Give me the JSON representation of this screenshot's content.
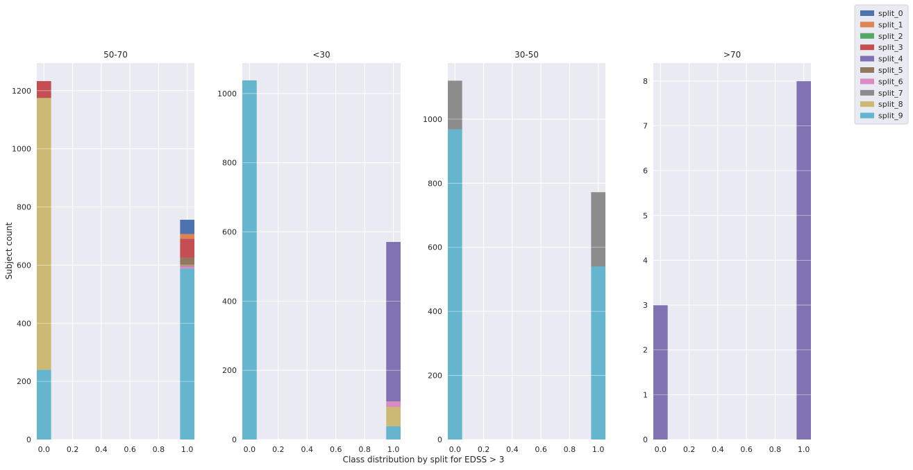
{
  "chart_data": {
    "type": "bar",
    "stacked": true,
    "figure": {
      "suptitle": "Class distribution by split for EDSS > 3",
      "ylabel": "Subject count"
    },
    "legend": {
      "placement": "top-right",
      "entries": [
        {
          "name": "split_0",
          "color": "#4c72b0"
        },
        {
          "name": "split_1",
          "color": "#dd8452"
        },
        {
          "name": "split_2",
          "color": "#55a868"
        },
        {
          "name": "split_3",
          "color": "#c44e52"
        },
        {
          "name": "split_4",
          "color": "#8172b3"
        },
        {
          "name": "split_5",
          "color": "#937860"
        },
        {
          "name": "split_6",
          "color": "#da8bc3"
        },
        {
          "name": "split_7",
          "color": "#8c8c8c"
        },
        {
          "name": "split_8",
          "color": "#ccb974"
        },
        {
          "name": "split_9",
          "color": "#64b5cd"
        }
      ]
    },
    "panels": [
      {
        "title": "50-70",
        "xlim": [
          -0.05,
          1.05
        ],
        "ylim": [
          0,
          1295
        ],
        "xticks": [
          0.0,
          0.2,
          0.4,
          0.6,
          0.8,
          1.0
        ],
        "xtick_labels": [
          "0.0",
          "0.2",
          "0.4",
          "0.6",
          "0.8",
          "1.0"
        ],
        "yticks": [
          0,
          200,
          400,
          600,
          800,
          1000,
          1200
        ],
        "ytick_labels": [
          "0",
          "200",
          "400",
          "600",
          "800",
          "1000",
          "1200"
        ],
        "bars": [
          {
            "x": 0.0,
            "segments": [
              {
                "series": "split_9",
                "value": 240
              },
              {
                "series": "split_8",
                "value": 935
              },
              {
                "series": "split_3",
                "value": 58
              }
            ]
          },
          {
            "x": 1.0,
            "segments": [
              {
                "series": "split_9",
                "value": 588
              },
              {
                "series": "split_6",
                "value": 8
              },
              {
                "series": "split_5",
                "value": 30
              },
              {
                "series": "split_3",
                "value": 65
              },
              {
                "series": "split_1",
                "value": 16
              },
              {
                "series": "split_0",
                "value": 49
              }
            ]
          }
        ]
      },
      {
        "title": "<30",
        "xlim": [
          -0.05,
          1.05
        ],
        "ylim": [
          0,
          1088
        ],
        "xticks": [
          0.0,
          0.2,
          0.4,
          0.6,
          0.8,
          1.0
        ],
        "xtick_labels": [
          "0.0",
          "0.2",
          "0.4",
          "0.6",
          "0.8",
          "1.0"
        ],
        "yticks": [
          0,
          200,
          400,
          600,
          800,
          1000
        ],
        "ytick_labels": [
          "0",
          "200",
          "400",
          "600",
          "800",
          "1000"
        ],
        "bars": [
          {
            "x": 0.0,
            "segments": [
              {
                "series": "split_9",
                "value": 1038
              }
            ]
          },
          {
            "x": 1.0,
            "segments": [
              {
                "series": "split_9",
                "value": 38
              },
              {
                "series": "split_8",
                "value": 56
              },
              {
                "series": "split_6",
                "value": 16
              },
              {
                "series": "split_4",
                "value": 461
              }
            ]
          }
        ]
      },
      {
        "title": "30-50",
        "xlim": [
          -0.05,
          1.05
        ],
        "ylim": [
          0,
          1175
        ],
        "xticks": [
          0.0,
          0.2,
          0.4,
          0.6,
          0.8,
          1.0
        ],
        "xtick_labels": [
          "0.0",
          "0.2",
          "0.4",
          "0.6",
          "0.8",
          "1.0"
        ],
        "yticks": [
          0,
          200,
          400,
          600,
          800,
          1000
        ],
        "ytick_labels": [
          "0",
          "200",
          "400",
          "600",
          "800",
          "1000"
        ],
        "bars": [
          {
            "x": 0.0,
            "segments": [
              {
                "series": "split_9",
                "value": 968
              },
              {
                "series": "split_7",
                "value": 152
              }
            ]
          },
          {
            "x": 1.0,
            "segments": [
              {
                "series": "split_9",
                "value": 540
              },
              {
                "series": "split_7",
                "value": 232
              }
            ]
          }
        ]
      },
      {
        "title": ">70",
        "xlim": [
          -0.05,
          1.05
        ],
        "ylim": [
          0,
          8.4
        ],
        "xticks": [
          0.0,
          0.2,
          0.4,
          0.6,
          0.8,
          1.0
        ],
        "xtick_labels": [
          "0.0",
          "0.2",
          "0.4",
          "0.6",
          "0.8",
          "1.0"
        ],
        "yticks": [
          0,
          1,
          2,
          3,
          4,
          5,
          6,
          7,
          8
        ],
        "ytick_labels": [
          "0",
          "1",
          "2",
          "3",
          "4",
          "5",
          "6",
          "7",
          "8"
        ],
        "bars": [
          {
            "x": 0.0,
            "segments": [
              {
                "series": "split_4",
                "value": 3
              }
            ]
          },
          {
            "x": 1.0,
            "segments": [
              {
                "series": "split_4",
                "value": 8
              }
            ]
          }
        ]
      }
    ]
  }
}
